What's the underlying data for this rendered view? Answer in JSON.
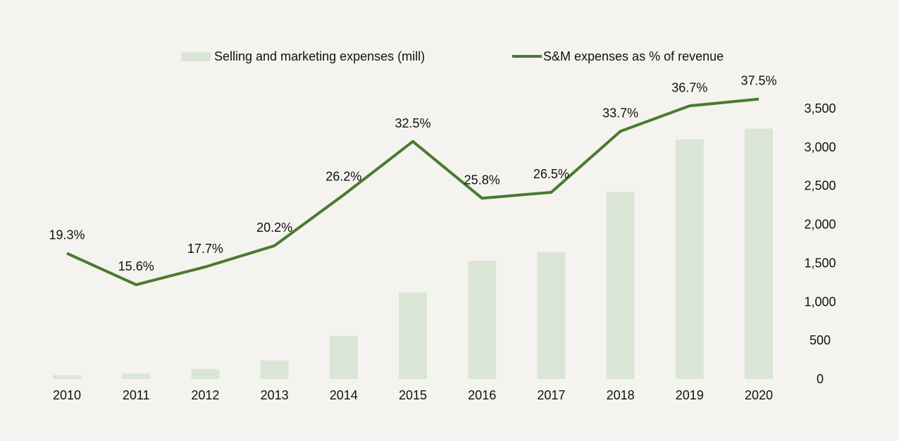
{
  "chart_data": {
    "type": "bar",
    "categories": [
      "2010",
      "2011",
      "2012",
      "2013",
      "2014",
      "2015",
      "2016",
      "2017",
      "2018",
      "2019",
      "2020"
    ],
    "series": [
      {
        "name": "Selling and marketing expenses (mill)",
        "type": "bar",
        "axis": "right",
        "values": [
          50,
          70,
          130,
          240,
          560,
          1120,
          1530,
          1640,
          2420,
          3100,
          3240
        ],
        "color": "#dbe5d5"
      },
      {
        "name": "S&M expenses as % of revenue",
        "type": "line",
        "axis": "secondary",
        "values": [
          19.3,
          15.6,
          17.7,
          20.2,
          26.2,
          32.5,
          25.8,
          26.5,
          33.7,
          36.7,
          37.5
        ],
        "labels": [
          "19.3%",
          "15.6%",
          "17.7%",
          "20.2%",
          "26.2%",
          "32.5%",
          "25.8%",
          "26.5%",
          "33.7%",
          "36.7%",
          "37.5%"
        ],
        "color": "#4a7a31"
      }
    ],
    "y_right": {
      "ticks": [
        0,
        500,
        1000,
        1500,
        2000,
        2500,
        3000,
        3500
      ],
      "tick_labels": [
        "0",
        "500",
        "1,000",
        "1,500",
        "2,000",
        "2,500",
        "3,000",
        "3,500"
      ],
      "ylim": [
        0,
        3500
      ]
    },
    "legend_position": "top-center",
    "grid": false,
    "title": "",
    "xlabel": "",
    "ylabel": ""
  }
}
